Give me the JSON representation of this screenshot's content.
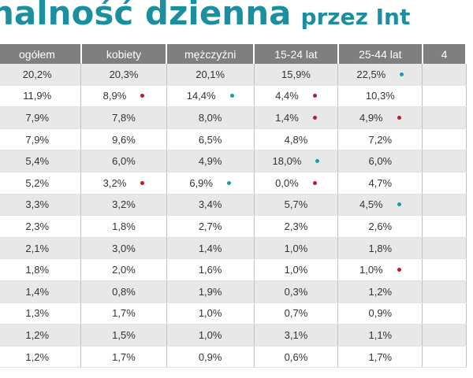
{
  "title": {
    "main": "halność dzienna",
    "sub": "przez Int"
  },
  "headers": [
    "ogółem",
    "kobiety",
    "mężczyźni",
    "15-24 lat",
    "25-44 lat",
    "4"
  ],
  "colors": {
    "red_marker": "#c0182c",
    "teal_marker": "#1b9aaa",
    "title": "#1b8ea0",
    "header_bg": "#7f7f7f"
  },
  "rows": [
    [
      {
        "v": "20,2%"
      },
      {
        "v": "20,3%"
      },
      {
        "v": "20,1%"
      },
      {
        "v": "15,9%"
      },
      {
        "v": "22,5%",
        "m": "teal"
      },
      {
        "v": ""
      }
    ],
    [
      {
        "v": "11,9%"
      },
      {
        "v": "8,9%",
        "m": "red"
      },
      {
        "v": "14,4%",
        "m": "teal"
      },
      {
        "v": "4,4%",
        "m": "red"
      },
      {
        "v": "10,3%"
      },
      {
        "v": ""
      }
    ],
    [
      {
        "v": "7,9%"
      },
      {
        "v": "7,8%"
      },
      {
        "v": "8,0%"
      },
      {
        "v": "1,4%",
        "m": "red"
      },
      {
        "v": "4,9%",
        "m": "red"
      },
      {
        "v": ""
      }
    ],
    [
      {
        "v": "7,9%"
      },
      {
        "v": "9,6%"
      },
      {
        "v": "6,5%"
      },
      {
        "v": "4,8%"
      },
      {
        "v": "7,2%"
      },
      {
        "v": ""
      }
    ],
    [
      {
        "v": "5,4%"
      },
      {
        "v": "6,0%"
      },
      {
        "v": "4,9%"
      },
      {
        "v": "18,0%",
        "m": "teal"
      },
      {
        "v": "6,0%"
      },
      {
        "v": ""
      }
    ],
    [
      {
        "v": "5,2%"
      },
      {
        "v": "3,2%",
        "m": "red"
      },
      {
        "v": "6,9%",
        "m": "teal"
      },
      {
        "v": "0,0%",
        "m": "red"
      },
      {
        "v": "4,7%"
      },
      {
        "v": ""
      }
    ],
    [
      {
        "v": "3,3%"
      },
      {
        "v": "3,2%"
      },
      {
        "v": "3,4%"
      },
      {
        "v": "5,7%"
      },
      {
        "v": "4,5%",
        "m": "teal"
      },
      {
        "v": ""
      }
    ],
    [
      {
        "v": "2,3%"
      },
      {
        "v": "1,8%"
      },
      {
        "v": "2,7%"
      },
      {
        "v": "2,3%"
      },
      {
        "v": "2,6%"
      },
      {
        "v": ""
      }
    ],
    [
      {
        "v": "2,1%"
      },
      {
        "v": "3,0%"
      },
      {
        "v": "1,4%"
      },
      {
        "v": "1,0%"
      },
      {
        "v": "1,8%"
      },
      {
        "v": ""
      }
    ],
    [
      {
        "v": "1,8%"
      },
      {
        "v": "2,0%"
      },
      {
        "v": "1,6%"
      },
      {
        "v": "1,0%"
      },
      {
        "v": "1,0%",
        "m": "red"
      },
      {
        "v": ""
      }
    ],
    [
      {
        "v": "1,4%"
      },
      {
        "v": "0,8%"
      },
      {
        "v": "1,9%"
      },
      {
        "v": "0,3%"
      },
      {
        "v": "1,2%"
      },
      {
        "v": ""
      }
    ],
    [
      {
        "v": "1,3%"
      },
      {
        "v": "1,7%"
      },
      {
        "v": "1,0%"
      },
      {
        "v": "0,7%"
      },
      {
        "v": "0,9%"
      },
      {
        "v": ""
      }
    ],
    [
      {
        "v": "1,2%"
      },
      {
        "v": "1,5%"
      },
      {
        "v": "1,0%"
      },
      {
        "v": "3,1%"
      },
      {
        "v": "1,1%"
      },
      {
        "v": ""
      }
    ],
    [
      {
        "v": "1,2%"
      },
      {
        "v": "1,7%"
      },
      {
        "v": "0,9%"
      },
      {
        "v": "0,6%"
      },
      {
        "v": "1,7%"
      },
      {
        "v": ""
      }
    ]
  ]
}
